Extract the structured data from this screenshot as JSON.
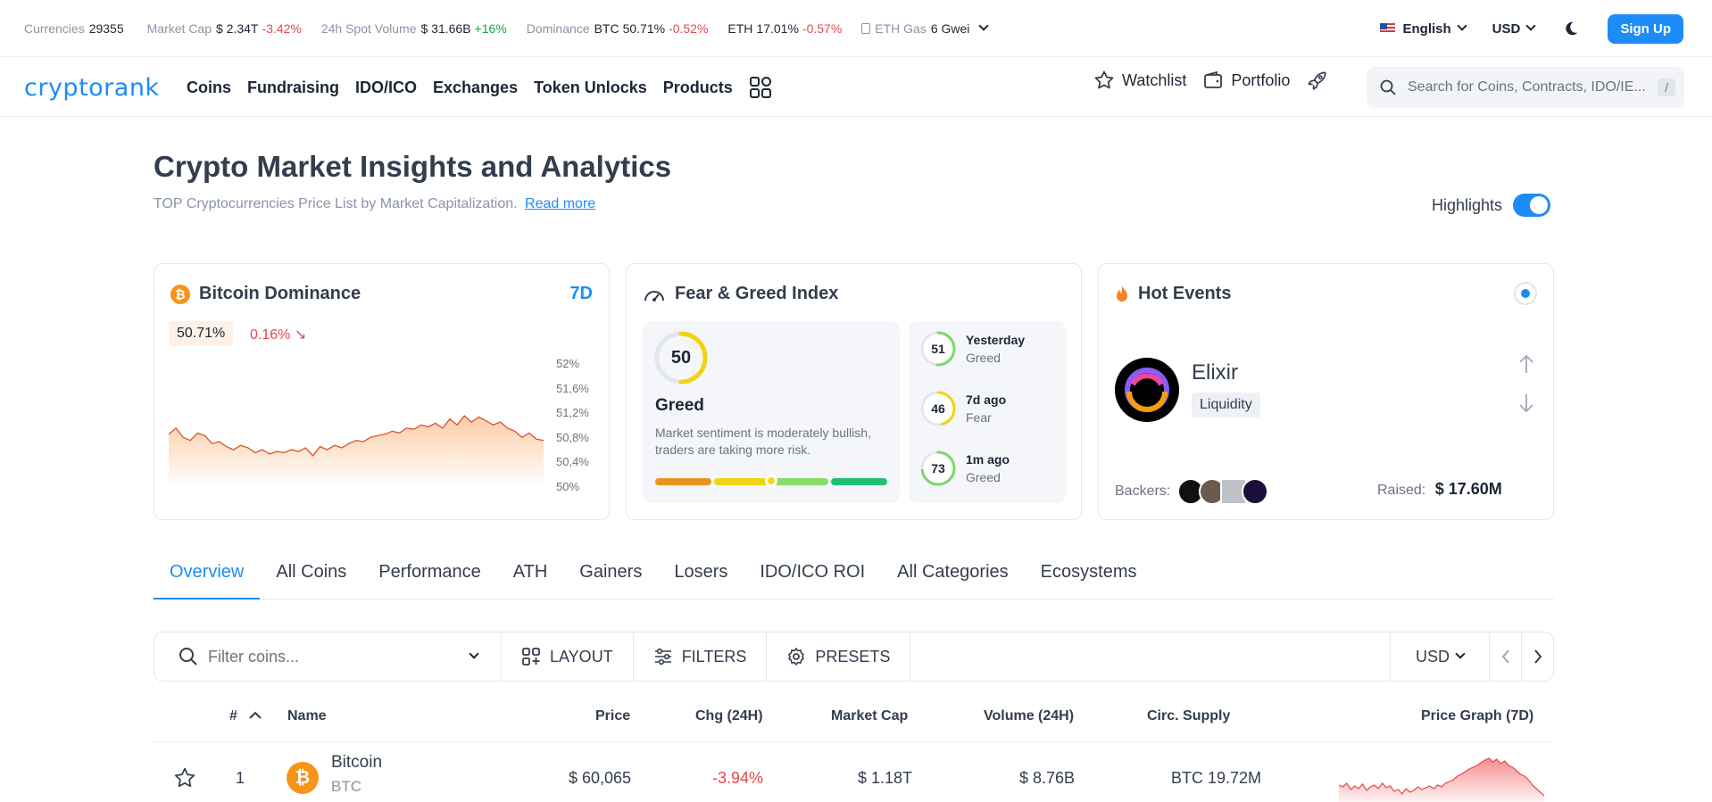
{
  "stats": {
    "currencies_label": "Currencies",
    "currencies_value": "29355",
    "mcap_label": "Market Cap",
    "mcap_value": "$ 2.34T",
    "mcap_change": "-3.42%",
    "vol_label": "24h Spot Volume",
    "vol_value": "$ 31.66B",
    "vol_change": "+16%",
    "dom_label": "Dominance",
    "dom_btc_sym": "BTC",
    "dom_btc_value": "50.71%",
    "dom_btc_change": "-0.52%",
    "dom_eth_sym": "ETH",
    "dom_eth_value": "17.01%",
    "dom_eth_change": "-0.57%",
    "gas_label": "ETH Gas",
    "gas_value": "6 Gwei",
    "language": "English",
    "currency": "USD",
    "signup": "Sign Up"
  },
  "nav": {
    "logo": "cryptorank",
    "items": [
      "Coins",
      "Fundraising",
      "IDO/ICO",
      "Exchanges",
      "Token Unlocks",
      "Products"
    ],
    "watchlist": "Watchlist",
    "portfolio": "Portfolio",
    "search_placeholder": "Search for Coins, Contracts, IDO/IE...",
    "search_key": "/"
  },
  "heading": {
    "title": "Crypto Market Insights and Analytics",
    "subtitle": "TOP Cryptocurrencies Price List by Market Capitalization.",
    "read_more": "Read more",
    "highlights": "Highlights"
  },
  "dominance_card": {
    "title": "Bitcoin Dominance",
    "btc_icon": "₿",
    "period": "7D",
    "value": "50.71%",
    "change": "0.16% ↘",
    "y_labels": [
      "52%",
      "51,6%",
      "51,2%",
      "50,8%",
      "50,4%",
      "50%"
    ]
  },
  "chart_data": {
    "type": "area",
    "title": "Bitcoin Dominance",
    "ylim": [
      50,
      52
    ],
    "y_ticks": [
      "52%",
      "51,6%",
      "51,2%",
      "50,8%",
      "50,4%",
      "50%"
    ],
    "values": [
      50.8,
      50.9,
      50.75,
      50.7,
      50.82,
      50.78,
      50.65,
      50.68,
      50.6,
      50.55,
      50.62,
      50.58,
      50.5,
      50.55,
      50.48,
      50.52,
      50.5,
      50.55,
      50.52,
      50.58,
      50.45,
      50.6,
      50.55,
      50.62,
      50.58,
      50.65,
      50.7,
      50.68,
      50.75,
      50.78,
      50.8,
      50.85,
      50.82,
      50.9,
      50.88,
      50.95,
      50.92,
      50.98,
      50.9,
      51.05,
      50.95,
      51.1,
      51.0,
      51.08,
      51.02,
      50.95,
      51.0,
      50.9,
      50.85,
      50.75,
      50.82,
      50.72,
      50.7
    ]
  },
  "fear_greed": {
    "title": "Fear & Greed Index",
    "value": "50",
    "score": 50,
    "state": "Greed",
    "description": "Market sentiment is moderately bullish, traders are taking more risk.",
    "bar_colors": [
      "#e8961b",
      "#f0d414",
      "#86dd6a",
      "#1fbf73"
    ],
    "history": [
      {
        "value": "51",
        "score": 51,
        "period": "Yesterday",
        "state": "Greed",
        "color": "#7ed66a"
      },
      {
        "value": "46",
        "score": 46,
        "period": "7d ago",
        "state": "Fear",
        "color": "#f0d414"
      },
      {
        "value": "73",
        "score": 73,
        "period": "1m ago",
        "state": "Greed",
        "color": "#7ed66a"
      }
    ]
  },
  "hot_events": {
    "title": "Hot Events",
    "project": "Elixir",
    "category": "Liquidity",
    "backers_label": "Backers:",
    "raised_label": "Raised:",
    "raised_value": "$ 17.60M"
  },
  "tabs": [
    "Overview",
    "All Coins",
    "Performance",
    "ATH",
    "Gainers",
    "Losers",
    "IDO/ICO ROI",
    "All Categories",
    "Ecosystems"
  ],
  "toolbar": {
    "filter_placeholder": "Filter coins...",
    "layout": "LAYOUT",
    "filters": "FILTERS",
    "presets": "PRESETS",
    "currency": "USD"
  },
  "table": {
    "headers": [
      "#",
      "Name",
      "Price",
      "Chg (24H)",
      "Market Cap",
      "Volume (24H)",
      "Circ. Supply",
      "Price Graph (7D)"
    ],
    "rows": [
      {
        "rank": "1",
        "name": "Bitcoin",
        "symbol": "BTC",
        "price": "$ 60,065",
        "change": "-3.94%",
        "mcap": "$ 1.18T",
        "volume": "$ 8.76B",
        "supply": "BTC 19.72M"
      }
    ]
  }
}
